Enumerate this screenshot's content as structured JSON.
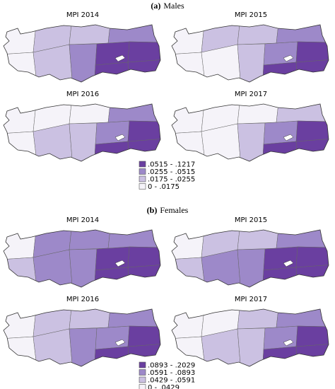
{
  "panels": [
    {
      "label": "(a)",
      "title": "Males",
      "maps": [
        {
          "title": "MPI 2014"
        },
        {
          "title": "MPI 2015"
        },
        {
          "title": "MPI 2016"
        },
        {
          "title": "MPI 2017"
        }
      ],
      "legend": [
        {
          "label": ".0515 - .1217",
          "color": "#6a3fa0"
        },
        {
          "label": ".0255 - .0515",
          "color": "#9d89c9"
        },
        {
          "label": ".0175 - .0255",
          "color": "#cbc1e2"
        },
        {
          "label": "0 - .0175",
          "color": "#f5f3f9"
        }
      ]
    },
    {
      "label": "(b)",
      "title": "Females",
      "maps": [
        {
          "title": "MPI 2014"
        },
        {
          "title": "MPI 2015"
        },
        {
          "title": "MPI 2016"
        },
        {
          "title": "MPI 2017"
        }
      ],
      "legend": [
        {
          "label": ".0893 - .2029",
          "color": "#6a3fa0"
        },
        {
          "label": ".0591 - .0893",
          "color": "#9d89c9"
        },
        {
          "label": ".0429 - .0591",
          "color": "#cbc1e2"
        },
        {
          "label": "0 - .0429",
          "color": "#f5f3f9"
        }
      ]
    }
  ]
}
